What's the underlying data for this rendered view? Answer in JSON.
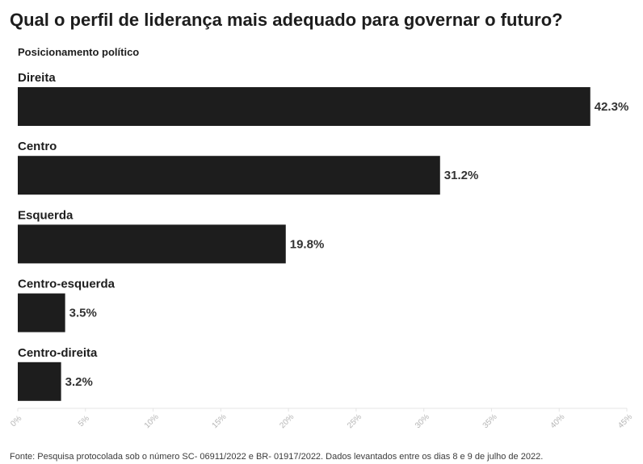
{
  "chart_data": {
    "type": "bar",
    "orientation": "horizontal",
    "title": "Qual o perfil de liderança mais adequado para governar o futuro?",
    "subtitle": "Posicionamento político",
    "categories": [
      "Direita",
      "Centro",
      "Esquerda",
      "Centro-esquerda",
      "Centro-direita"
    ],
    "values": [
      42.3,
      31.2,
      19.8,
      3.5,
      3.2
    ],
    "value_labels": [
      "42.3%",
      "31.2%",
      "19.8%",
      "3.5%",
      "3.2%"
    ],
    "xlim": [
      0,
      45
    ],
    "x_ticks": [
      0,
      5,
      10,
      15,
      20,
      25,
      30,
      35,
      40,
      45
    ],
    "x_tick_labels": [
      "0%",
      "5%",
      "10%",
      "15%",
      "20%",
      "25%",
      "30%",
      "35%",
      "40%",
      "45%"
    ],
    "bar_color": "#1d1d1d",
    "grid": false,
    "legend": "none"
  },
  "footer": {
    "source": "Fonte: Pesquisa protocolada sob o número SC- 06911/2022 e BR- 01917/2022. Dados levantados entre os dias 8 e 9 de julho de 2022."
  }
}
